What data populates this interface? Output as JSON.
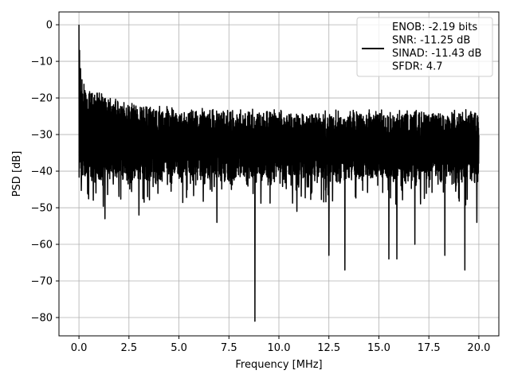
{
  "chart_data": {
    "type": "line",
    "xlabel": "Frequency [MHz]",
    "ylabel": "PSD [dB]",
    "xlim": [
      -1.0,
      21.0
    ],
    "ylim": [
      -85,
      3.5
    ],
    "x_ticks": [
      0.0,
      2.5,
      5.0,
      7.5,
      10.0,
      12.5,
      15.0,
      17.5,
      20.0
    ],
    "x_tick_labels": [
      "0.0",
      "2.5",
      "5.0",
      "7.5",
      "10.0",
      "12.5",
      "15.0",
      "17.5",
      "20.0"
    ],
    "y_ticks": [
      0,
      -10,
      -20,
      -30,
      -40,
      -50,
      -60,
      -70,
      -80
    ],
    "y_tick_labels": [
      "0",
      "−10",
      "−20",
      "−30",
      "−40",
      "−50",
      "−60",
      "−70",
      "−80"
    ],
    "grid": true,
    "legend_position": "top-right",
    "series": [
      {
        "name": "ENOB: -2.19 bits\nSNR: -11.25 dB\nSINAD: -11.43 dB\nSFDR: 4.7",
        "color": "#000000",
        "noise_floor_range": [
          -35,
          -25
        ],
        "peaks": [
          {
            "x": 0.0,
            "y": 0
          },
          {
            "x": 0.03,
            "y": -7
          },
          {
            "x": 0.08,
            "y": -12
          },
          {
            "x": 0.15,
            "y": -15
          },
          {
            "x": 0.3,
            "y": -18
          }
        ],
        "dips": [
          {
            "x": 1.3,
            "y": -53
          },
          {
            "x": 3.0,
            "y": -52
          },
          {
            "x": 6.9,
            "y": -54
          },
          {
            "x": 8.8,
            "y": -81
          },
          {
            "x": 10.9,
            "y": -51
          },
          {
            "x": 12.5,
            "y": -63
          },
          {
            "x": 13.3,
            "y": -67
          },
          {
            "x": 15.5,
            "y": -64
          },
          {
            "x": 15.9,
            "y": -64
          },
          {
            "x": 16.8,
            "y": -60
          },
          {
            "x": 18.3,
            "y": -63
          },
          {
            "x": 19.3,
            "y": -67
          },
          {
            "x": 19.9,
            "y": -54
          }
        ],
        "x_range": [
          0.0,
          20.0
        ]
      }
    ]
  }
}
